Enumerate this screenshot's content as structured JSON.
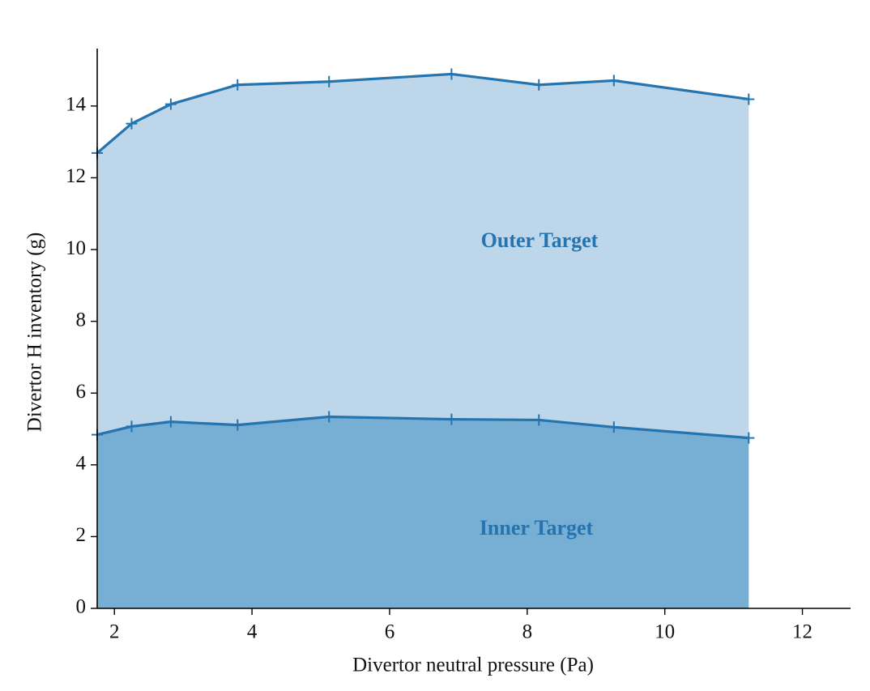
{
  "chart_data": {
    "type": "stacked_area",
    "xlabel": "Divertor neutral pressure (Pa)",
    "ylabel": "Divertor H inventory (g)",
    "x": [
      1.75,
      2.25,
      2.82,
      3.79,
      5.12,
      6.9,
      8.17,
      9.26,
      11.22
    ],
    "series": [
      {
        "name": "Inner Target",
        "color": "#77aed3",
        "line_color": "#2474b0",
        "values": [
          4.84,
          5.07,
          5.2,
          5.11,
          5.34,
          5.27,
          5.25,
          5.05,
          4.75
        ]
      },
      {
        "name": "Outer Target",
        "color": "#bdd6e9",
        "line_color": "#2474b0",
        "values": [
          7.85,
          8.44,
          8.85,
          9.48,
          9.34,
          9.62,
          9.34,
          9.66,
          9.44
        ]
      }
    ],
    "xlim": [
      1.75,
      12.7
    ],
    "ylim": [
      0,
      15.6
    ],
    "xticks": [
      2,
      4,
      6,
      8,
      10,
      12
    ],
    "yticks": [
      0,
      2,
      4,
      6,
      8,
      10,
      12,
      14
    ],
    "grid": false
  }
}
